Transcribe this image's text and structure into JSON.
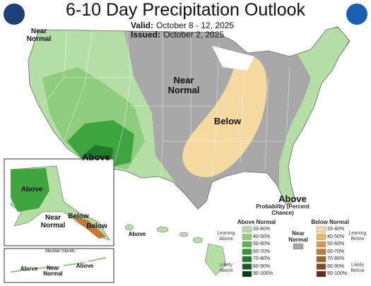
{
  "header": {
    "title": "6-10 Day Precipitation Outlook",
    "valid_label": "Valid:",
    "valid": "October 8 - 12, 2025",
    "issued_label": "Issued:",
    "issued": "October 2, 2025"
  },
  "map_labels": {
    "northwest": "Near Normal",
    "central": "Near Normal",
    "ohio_valley": "Below",
    "southwest": "Above",
    "florida": "Above"
  },
  "alaska_labels": {
    "west": "Above",
    "south": "Near Normal",
    "panhandle_north": "Below",
    "panhandle_south": "Below"
  },
  "hawaii_labels": {
    "west": "Above"
  },
  "aleutian": {
    "title": "Aleutian Islands",
    "labels": [
      "Above",
      "Near Normal",
      "Above"
    ]
  },
  "legend": {
    "title": "Probability (Percent Chance)",
    "above_title": "Above Normal",
    "near_title": "Near Normal",
    "below_title": "Below Normal",
    "ranges": [
      "33-40%",
      "40-50%",
      "50-60%",
      "60-70%",
      "70-80%",
      "80-90%",
      "90-100%"
    ],
    "above_colors": [
      "#b5dea7",
      "#8fcd7e",
      "#5db653",
      "#2f9a35",
      "#1f7a2b",
      "#145c22",
      "#0a3b13"
    ],
    "below_colors": [
      "#f4d9a0",
      "#e8b86c",
      "#d89a4a",
      "#c07a35",
      "#a2602b",
      "#854822",
      "#5a3116"
    ],
    "near_color": "#a6a6a6",
    "leaning_above": "Leaning Above",
    "likely_above": "Likely Above",
    "leaning_below": "Leaning Below",
    "likely_below": "Likely Below"
  }
}
